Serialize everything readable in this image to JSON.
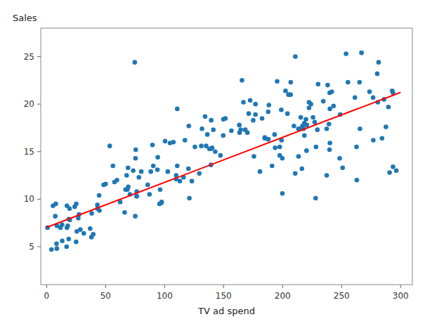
{
  "chart_data": {
    "type": "scatter",
    "xlabel": "TV ad spend",
    "ylabel": "Sales",
    "xlim": [
      -5,
      310
    ],
    "ylim": [
      1,
      28
    ],
    "xticks": [
      0,
      50,
      100,
      150,
      200,
      250,
      300
    ],
    "yticks": [
      5,
      10,
      15,
      20,
      25
    ],
    "grid": false,
    "series": [
      {
        "type": "scatter",
        "color": "#1f77b4",
        "marker": "circle",
        "x": [
          230.1,
          44.5,
          17.2,
          151.5,
          180.8,
          8.7,
          57.5,
          120.2,
          8.6,
          199.8,
          66.1,
          214.7,
          23.8,
          97.5,
          204.1,
          195.4,
          67.8,
          281.4,
          69.2,
          147.3,
          218.4,
          237.4,
          13.2,
          228.3,
          62.3,
          262.9,
          142.9,
          240.1,
          248.8,
          70.6,
          292.9,
          112.9,
          97.2,
          265.6,
          95.7,
          290.7,
          266.9,
          74.7,
          43.1,
          228.0,
          202.5,
          177.0,
          293.6,
          206.9,
          25.1,
          175.1,
          89.7,
          239.9,
          227.2,
          66.9,
          199.8,
          100.4,
          216.4,
          182.6,
          262.7,
          198.9,
          7.3,
          136.2,
          210.8,
          210.7,
          53.5,
          261.3,
          239.3,
          102.7,
          131.1,
          69.0,
          31.5,
          139.3,
          237.4,
          216.8,
          199.1,
          109.8,
          26.8,
          129.4,
          213.4,
          16.9,
          27.5,
          120.5,
          5.4,
          116.0,
          76.4,
          239.8,
          75.3,
          68.4,
          213.5,
          193.2,
          76.3,
          110.7,
          88.3,
          109.8,
          134.3,
          28.6,
          217.7,
          250.9,
          107.4,
          163.3,
          197.6,
          184.9,
          289.7,
          135.2,
          222.4,
          296.4,
          280.2,
          187.9,
          238.2,
          137.9,
          25.0,
          90.4,
          13.1,
          255.4,
          225.8,
          241.7,
          175.7,
          209.6,
          78.2,
          75.1,
          139.2,
          76.4,
          125.7,
          19.4,
          141.3,
          18.8,
          224.0,
          123.1,
          229.5,
          87.2,
          7.8,
          80.2,
          220.3,
          59.6,
          0.7,
          265.2,
          8.4,
          219.8,
          36.9,
          48.3,
          25.6,
          273.7,
          43.0,
          184.9,
          73.4,
          193.7,
          220.5,
          104.6,
          96.2,
          140.3,
          240.1,
          243.2,
          38.0,
          44.7,
          280.7,
          121.0,
          197.6,
          171.3,
          187.8,
          4.1,
          93.9,
          149.8,
          11.7,
          131.7,
          172.5,
          85.7,
          188.4,
          163.5,
          117.2,
          234.5,
          17.9,
          206.8,
          215.4,
          284.3,
          50.0,
          164.5,
          19.6,
          168.4,
          222.4,
          276.9,
          248.4,
          170.2,
          276.7,
          165.6,
          156.6,
          218.5,
          56.2,
          287.6,
          253.8,
          205.0,
          139.5,
          191.1,
          286.0,
          18.7,
          39.5,
          75.5,
          17.2,
          166.8,
          149.7,
          38.2,
          94.2,
          177.0,
          293.6,
          110.7
        ],
        "values": [
          22.1,
          10.4,
          9.3,
          18.5,
          12.9,
          7.2,
          11.8,
          13.2,
          4.8,
          10.6,
          8.6,
          17.4,
          9.2,
          9.7,
          19.0,
          22.4,
          12.5,
          24.4,
          11.3,
          14.6,
          18.0,
          12.5,
          5.6,
          15.5,
          9.7,
          12.0,
          15.0,
          15.9,
          18.9,
          10.5,
          21.4,
          11.9,
          9.6,
          17.4,
          9.5,
          12.8,
          25.4,
          24.4,
          9.0,
          10.1,
          21.4,
          18.9,
          13.4,
          22.3,
          9.5,
          18.3,
          15.7,
          21.2,
          18.1,
          11.0,
          14.3,
          16.1,
          13.2,
          18.5,
          15.5,
          19.4,
          8.2,
          16.8,
          25.0,
          12.7,
          15.6,
          20.7,
          17.9,
          12.9,
          15.6,
          13.3,
          6.4,
          13.6,
          17.4,
          17.7,
          16.2,
          12.1,
          8.0,
          12.7,
          17.4,
          5.0,
          8.4,
          17.7,
          9.3,
          12.3,
          10.3,
          15.2,
          14.3,
          11.0,
          14.5,
          16.8,
          10.3,
          13.5,
          12.9,
          12.5,
          18.7,
          6.8,
          17.4,
          13.3,
          16.0,
          17.8,
          14.6,
          16.5,
          19.7,
          15.6,
          19.6,
          13.0,
          23.2,
          16.3,
          22.0,
          15.3,
          5.5,
          13.5,
          7.3,
          22.3,
          18.6,
          21.3,
          14.5,
          17.7,
          12.3,
          8.2,
          15.3,
          10.8,
          15.5,
          9.0,
          17.3,
          7.9,
          20.0,
          11.9,
          17.3,
          10.5,
          9.5,
          12.9,
          15.1,
          12.0,
          7.0,
          22.3,
          5.3,
          18.4,
          6.9,
          11.5,
          6.6,
          21.3,
          9.4,
          16.4,
          13.0,
          15.4,
          17.8,
          15.9,
          11.0,
          15.4,
          19.5,
          19.8,
          6.0,
          8.8,
          20.2,
          10.1,
          15.5,
          19.0,
          19.2,
          4.7,
          13.1,
          18.4,
          7.0,
          17.4,
          20.4,
          11.5,
          19.9,
          17.0,
          16.2,
          20.3,
          7.2,
          21.0,
          18.6,
          16.4,
          11.6,
          17.3,
          7.8,
          17.3,
          20.2,
          16.2,
          14.3,
          17.0,
          20.7,
          22.5,
          17.2,
          16.7,
          13.5,
          17.6,
          25.3,
          21.0,
          18.3,
          13.5,
          20.5,
          5.8,
          6.3,
          15.2,
          7.0,
          20.2,
          16.7,
          8.5,
          14.4,
          20.0,
          21.2,
          19.5
        ]
      },
      {
        "type": "line",
        "color": "red",
        "line_style": "solid",
        "x": [
          0,
          300
        ],
        "values": [
          7.032594,
          21.231852
        ]
      }
    ]
  }
}
